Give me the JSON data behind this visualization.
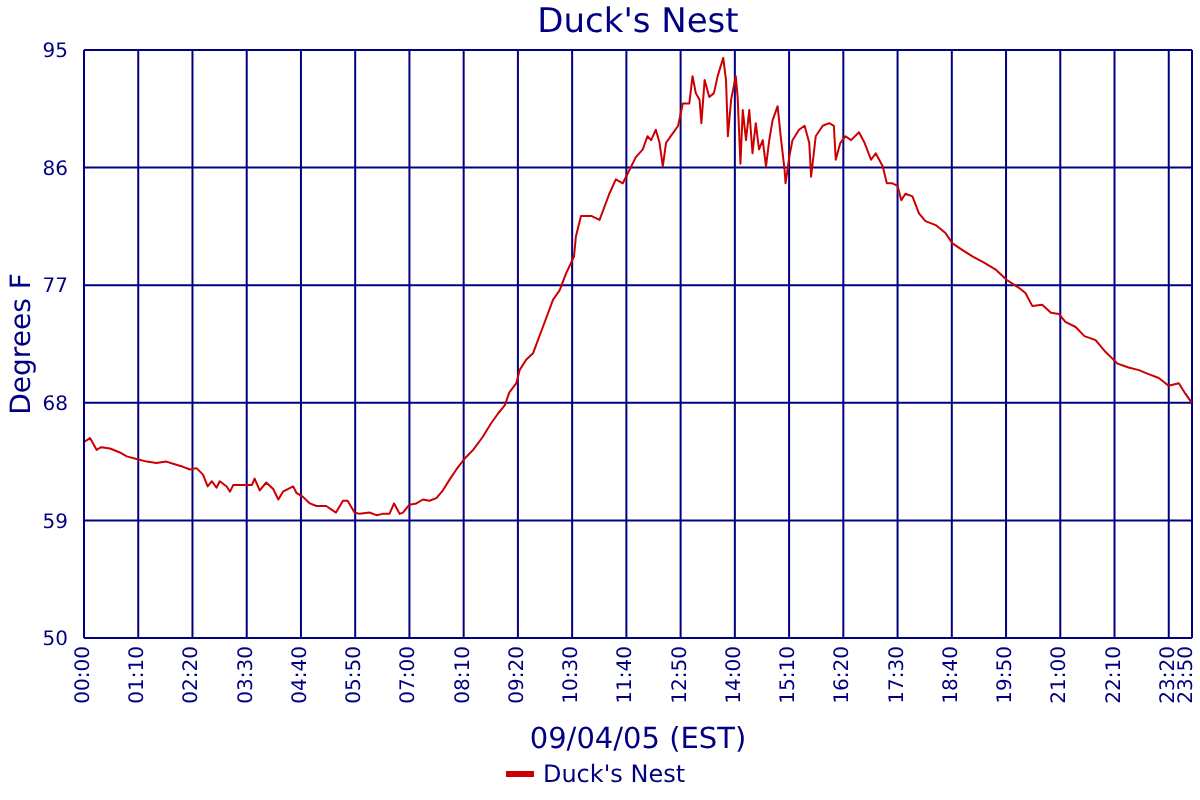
{
  "chart_data": {
    "type": "line",
    "title": "Duck's Nest",
    "xlabel": "09/04/05 (EST)",
    "ylabel": "Degrees F",
    "x": [
      0,
      0.13,
      0.27,
      0.37,
      0.56,
      0.77,
      0.92,
      1.13,
      1.35,
      1.56,
      1.77,
      1.95,
      2.13,
      2.28,
      2.42,
      2.56,
      2.66,
      2.75,
      2.85,
      2.92,
      3.07,
      3.14,
      3.21,
      3.42,
      3.61,
      3.67,
      3.78,
      3.92,
      4.07,
      4.18,
      4.28,
      4.5,
      4.57,
      4.71,
      4.86,
      5,
      5.21,
      5.42,
      5.57,
      5.67,
      5.82,
      5.93,
      6.14,
      6.29,
      6.43,
      6.57,
      6.67,
      6.79,
      6.86,
      7,
      7.15,
      7.29,
      7.43,
      7.58,
      7.72,
      7.86,
      8.01,
      8.18,
      8.37,
      8.58,
      8.75,
      8.91,
      9.05,
      9.15,
      9.3,
      9.37,
      9.51,
      9.66,
      9.87,
      10.09,
      10.23,
      10.37,
      10.54,
      10.58,
      10.69,
      10.91,
      11.09,
      11.3,
      11.44,
      11.59,
      11.73,
      11.87,
      12.02,
      12.12,
      12.2,
      12.3,
      12.38,
      12.45,
      12.52,
      12.66,
      12.78,
      12.88,
      13.02,
      13.09,
      13.16,
      13.24,
      13.28,
      13.35,
      13.45,
      13.55,
      13.63,
      13.75,
      13.81,
      13.85,
      13.92,
      14.02,
      14.06,
      14.12,
      14.17,
      14.24,
      14.31,
      14.38,
      14.45,
      14.52,
      14.6,
      14.67,
      14.74,
      14.81,
      14.92,
      14.98,
      15.07,
      15.09,
      15.17,
      15.24,
      15.38,
      15.5,
      15.6,
      15.64,
      15.74,
      15.89,
      16.03,
      16.13,
      16.17,
      16.27,
      16.38,
      16.5,
      16.67,
      16.79,
      16.93,
      17.03,
      17.18,
      17.27,
      17.39,
      17.5,
      17.58,
      17.67,
      17.82,
      17.96,
      18.1,
      18.32,
      18.53,
      18.68,
      18.89,
      19.11,
      19.37,
      19.61,
      19.85,
      20.11,
      20.25,
      20.4,
      20.61,
      20.8,
      20.97,
      21.11,
      21.33,
      21.52,
      21.76,
      21.97,
      22.23,
      22.47,
      22.69,
      22.9,
      23.12,
      23.33,
      23.55,
      23.69,
      23.83
    ],
    "series": [
      {
        "name": "Duck's Nest",
        "color": "#cc0000",
        "values": [
          65.0,
          65.3,
          64.4,
          64.6,
          64.5,
          64.2,
          63.9,
          63.7,
          63.5,
          63.4,
          63.5,
          63.3,
          63.1,
          62.9,
          63.0,
          62.5,
          61.6,
          62.0,
          61.5,
          62.0,
          61.6,
          61.2,
          61.7,
          61.7,
          61.7,
          62.2,
          61.3,
          61.9,
          61.4,
          60.6,
          61.2,
          61.6,
          61.1,
          60.8,
          60.3,
          60.1,
          60.1,
          59.6,
          60.5,
          60.5,
          59.6,
          59.5,
          59.6,
          59.4,
          59.5,
          59.5,
          60.3,
          59.5,
          59.6,
          60.2,
          60.3,
          60.6,
          60.5,
          60.7,
          61.3,
          62.1,
          62.9,
          63.7,
          64.4,
          65.4,
          66.4,
          67.2,
          67.8,
          68.8,
          69.5,
          70.5,
          71.3,
          71.8,
          73.8,
          75.9,
          76.6,
          77.9,
          79.2,
          80.7,
          82.3,
          82.3,
          82.0,
          84.0,
          85.1,
          84.8,
          85.8,
          86.8,
          87.4,
          88.4,
          88.1,
          88.9,
          87.9,
          86.1,
          87.9,
          88.6,
          89.2,
          90.9,
          90.9,
          93.0,
          91.7,
          91.2,
          89.4,
          92.7,
          91.4,
          91.7,
          93.0,
          94.4,
          92.7,
          88.4,
          91.2,
          93.0,
          91.4,
          86.3,
          90.4,
          88.1,
          90.4,
          87.1,
          89.4,
          87.4,
          88.1,
          86.1,
          88.1,
          89.6,
          90.7,
          88.6,
          85.8,
          84.8,
          86.8,
          88.1,
          88.9,
          89.2,
          87.9,
          85.3,
          88.4,
          89.2,
          89.4,
          89.2,
          86.6,
          87.9,
          88.4,
          88.1,
          88.7,
          87.9,
          86.6,
          87.1,
          86.1,
          84.8,
          84.8,
          84.6,
          83.5,
          84.0,
          83.8,
          82.5,
          81.9,
          81.6,
          81.0,
          80.2,
          79.7,
          79.2,
          78.7,
          78.2,
          77.4,
          76.8,
          76.4,
          75.4,
          75.5,
          74.9,
          74.8,
          74.2,
          73.8,
          73.1,
          72.8,
          71.9,
          71.0,
          70.7,
          70.5,
          70.2,
          69.9,
          69.3,
          69.5,
          68.7,
          68.0
        ]
      }
    ],
    "xlim": [
      0,
      23.8333
    ],
    "xticks": [
      {
        "value": 0,
        "label": "00:00"
      },
      {
        "value": 1.1667,
        "label": "01:10"
      },
      {
        "value": 2.3333,
        "label": "02:20"
      },
      {
        "value": 3.5,
        "label": "03:30"
      },
      {
        "value": 4.6667,
        "label": "04:40"
      },
      {
        "value": 5.8333,
        "label": "05:50"
      },
      {
        "value": 7,
        "label": "07:00"
      },
      {
        "value": 8.1667,
        "label": "08:10"
      },
      {
        "value": 9.3333,
        "label": "09:20"
      },
      {
        "value": 10.5,
        "label": "10:30"
      },
      {
        "value": 11.6667,
        "label": "11:40"
      },
      {
        "value": 12.8333,
        "label": "12:50"
      },
      {
        "value": 14,
        "label": "14:00"
      },
      {
        "value": 15.1667,
        "label": "15:10"
      },
      {
        "value": 16.3333,
        "label": "16:20"
      },
      {
        "value": 17.5,
        "label": "17:30"
      },
      {
        "value": 18.6667,
        "label": "18:40"
      },
      {
        "value": 19.8333,
        "label": "19:50"
      },
      {
        "value": 21,
        "label": "21:00"
      },
      {
        "value": 22.1667,
        "label": "22:10"
      },
      {
        "value": 23.3333,
        "label": "23:20"
      },
      {
        "value": 23.8333,
        "label": "23:50"
      }
    ],
    "ylim": [
      50,
      95
    ],
    "yticks": [
      50,
      59,
      68,
      77,
      86,
      95
    ],
    "grid": true,
    "legend": "bottom",
    "marker": "none",
    "line_style": "solid"
  }
}
